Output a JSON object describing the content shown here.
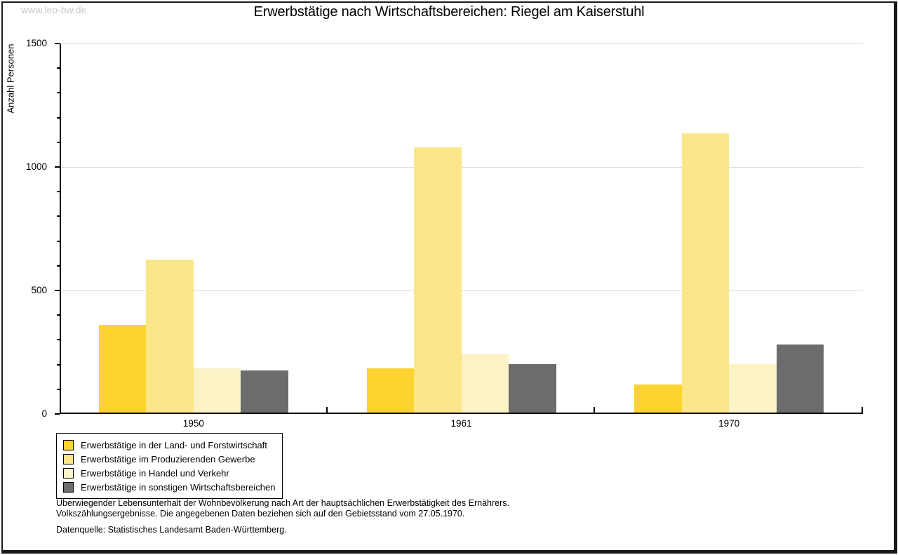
{
  "watermark": "www.leo-bw.de",
  "title": "Erwerbstätige nach Wirtschaftsbereichen: Riegel am Kaiserstuhl",
  "chart_data": {
    "type": "bar",
    "title": "Erwerbstätige nach Wirtschaftsbereichen: Riegel am Kaiserstuhl",
    "xlabel": "",
    "ylabel": "Anzahl Personen",
    "ylim": [
      0,
      1500
    ],
    "yticks_major": [
      0,
      500,
      1000,
      1500
    ],
    "ytick_minor_step": 100,
    "gridlines": [
      500,
      1000,
      1500
    ],
    "grid": true,
    "legend_position": "bottom-left",
    "categories": [
      "1950",
      "1961",
      "1970"
    ],
    "series": [
      {
        "name": "Erwerbstätige in der Land- und Forstwirtschaft",
        "color": "#fcd32f",
        "values": [
          355,
          180,
          115
        ]
      },
      {
        "name": "Erwerbstätige im Produzierenden Gewerbe",
        "color": "#fbe789",
        "values": [
          620,
          1075,
          1130
        ]
      },
      {
        "name": "Erwerbstätige in Handel und Verkehr",
        "color": "#fbf2c6",
        "values": [
          180,
          240,
          195
        ]
      },
      {
        "name": "Erwerbstätige in sonstigen Wirtschaftsbereichen",
        "color": "#6c6c6c",
        "values": [
          170,
          195,
          275
        ]
      }
    ]
  },
  "footer": {
    "line1": "Überwiegender Lebensunterhalt der Wohnbevölkerung nach Art der hauptsächlichen Erwerbstätigkeit des Ernährers.",
    "line2": "Volkszählungsergebnisse. Die angegebenen Daten beziehen sich auf den Gebietsstand vom 27.05.1970.",
    "source": "Datenquelle: Statistisches Landesamt Baden-Württemberg."
  }
}
